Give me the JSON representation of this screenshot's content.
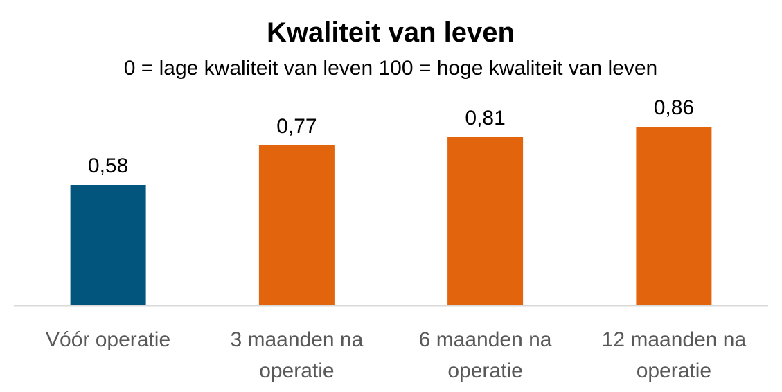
{
  "chart_data": {
    "type": "bar",
    "title": "Kwaliteit van leven",
    "subtitle": "0 = lage kwaliteit van leven  100 = hoge kwaliteit van leven",
    "categories": [
      [
        "Vóór operatie"
      ],
      [
        "3 maanden na",
        "operatie"
      ],
      [
        "6 maanden na",
        "operatie"
      ],
      [
        "12 maanden na",
        "operatie"
      ]
    ],
    "values": [
      0.58,
      0.77,
      0.81,
      0.86
    ],
    "value_labels": [
      "0,58",
      "0,77",
      "0,81",
      "0,86"
    ],
    "bar_colors": [
      "#02567E",
      "#E2640C",
      "#E2640C",
      "#E2640C"
    ],
    "axis_color": "#D9D9D9",
    "ylim": [
      0,
      1
    ],
    "grid": false,
    "legend": "none"
  }
}
